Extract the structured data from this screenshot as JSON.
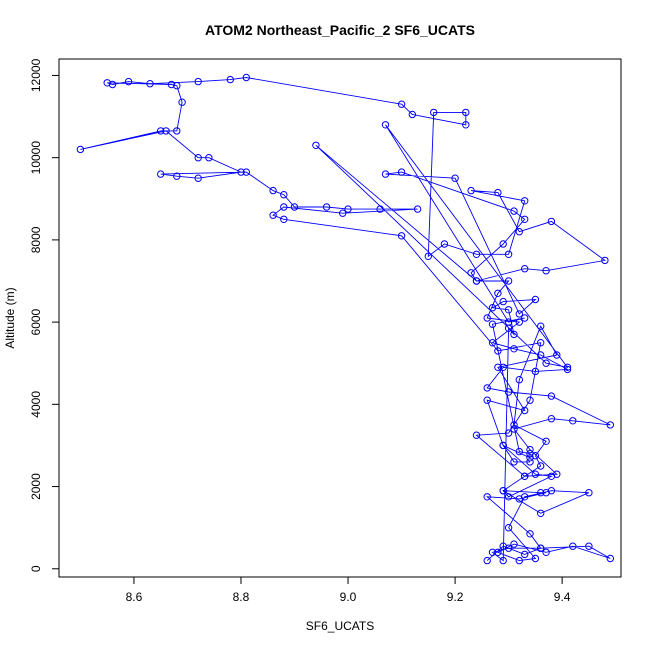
{
  "chart_data": {
    "type": "line",
    "title": "ATOM2 Northeast_Pacific_2 SF6_UCATS",
    "xlabel": "SF6_UCATS",
    "ylabel": "Altitude (m)",
    "xlim": [
      8.46,
      9.51
    ],
    "ylim": [
      -200,
      12400
    ],
    "x_ticks": [
      8.6,
      8.8,
      9.0,
      9.2,
      9.4
    ],
    "x_tick_labels": [
      "8.6",
      "8.8",
      "9.0",
      "9.2",
      "9.4"
    ],
    "y_ticks": [
      0,
      2000,
      4000,
      6000,
      8000,
      10000,
      12000
    ],
    "y_tick_labels": [
      "0",
      "2000",
      "4000",
      "6000",
      "8000",
      "10000",
      "12000"
    ],
    "grid": false,
    "marker": "open-circle",
    "series": [
      {
        "color": "#0000ff",
        "points": [
          [
            9.26,
            200
          ],
          [
            9.29,
            550
          ],
          [
            9.33,
            350
          ],
          [
            9.36,
            500
          ],
          [
            9.45,
            550
          ],
          [
            9.49,
            250
          ],
          [
            9.42,
            550
          ],
          [
            9.37,
            400
          ],
          [
            9.31,
            600
          ],
          [
            9.28,
            400
          ],
          [
            9.32,
            200
          ],
          [
            9.35,
            250
          ],
          [
            9.3,
            1000
          ],
          [
            9.33,
            1750
          ],
          [
            9.38,
            1900
          ],
          [
            9.45,
            1850
          ],
          [
            9.36,
            1350
          ],
          [
            9.29,
            1900
          ],
          [
            9.33,
            2250
          ],
          [
            9.39,
            2300
          ],
          [
            9.34,
            2900
          ],
          [
            9.31,
            3400
          ],
          [
            9.38,
            3650
          ],
          [
            9.42,
            3600
          ],
          [
            9.49,
            3500
          ],
          [
            9.38,
            4200
          ],
          [
            9.3,
            4300
          ],
          [
            9.26,
            4400
          ],
          [
            9.29,
            4900
          ],
          [
            9.35,
            4800
          ],
          [
            9.41,
            4850
          ],
          [
            9.36,
            5200
          ],
          [
            9.31,
            5350
          ],
          [
            9.27,
            5500
          ],
          [
            9.32,
            6000
          ],
          [
            9.26,
            6100
          ],
          [
            9.28,
            6700
          ],
          [
            9.3,
            7000
          ],
          [
            9.24,
            7000
          ],
          [
            9.33,
            7300
          ],
          [
            9.37,
            7250
          ],
          [
            9.48,
            7500
          ],
          [
            9.38,
            8450
          ],
          [
            9.32,
            8200
          ],
          [
            9.28,
            9150
          ],
          [
            9.23,
            9200
          ],
          [
            9.33,
            8950
          ],
          [
            9.3,
            7650
          ],
          [
            9.24,
            7650
          ],
          [
            9.18,
            7900
          ],
          [
            9.15,
            7600
          ],
          [
            9.16,
            11100
          ],
          [
            9.22,
            11100
          ],
          [
            9.22,
            10800
          ],
          [
            9.12,
            11050
          ],
          [
            9.1,
            11300
          ],
          [
            8.81,
            11950
          ],
          [
            8.78,
            11900
          ],
          [
            8.72,
            11850
          ],
          [
            8.63,
            11800
          ],
          [
            8.59,
            11850
          ],
          [
            8.56,
            11780
          ],
          [
            8.55,
            11820
          ],
          [
            8.67,
            11780
          ],
          [
            8.68,
            11750
          ],
          [
            8.69,
            11350
          ],
          [
            8.68,
            10650
          ],
          [
            8.65,
            10650
          ],
          [
            8.5,
            10200
          ],
          [
            8.66,
            10650
          ],
          [
            8.72,
            10000
          ],
          [
            8.74,
            10000
          ],
          [
            8.8,
            9650
          ],
          [
            8.72,
            9500
          ],
          [
            8.68,
            9550
          ],
          [
            8.65,
            9600
          ],
          [
            8.81,
            9650
          ],
          [
            8.86,
            9200
          ],
          [
            8.88,
            9100
          ],
          [
            8.9,
            8800
          ],
          [
            8.96,
            8800
          ],
          [
            9.0,
            8750
          ],
          [
            9.06,
            8750
          ],
          [
            9.13,
            8750
          ],
          [
            8.99,
            8650
          ],
          [
            8.88,
            8800
          ],
          [
            8.86,
            8600
          ],
          [
            8.88,
            8500
          ],
          [
            9.1,
            8100
          ],
          [
            9.28,
            5300
          ],
          [
            9.36,
            5500
          ],
          [
            9.34,
            4100
          ],
          [
            9.3,
            3300
          ],
          [
            9.24,
            3250
          ],
          [
            9.33,
            2250
          ],
          [
            9.36,
            2500
          ],
          [
            9.35,
            2750
          ],
          [
            9.37,
            3100
          ],
          [
            9.31,
            3500
          ],
          [
            9.32,
            4600
          ],
          [
            9.36,
            5900
          ],
          [
            9.39,
            5200
          ],
          [
            9.28,
            4900
          ],
          [
            9.33,
            3850
          ],
          [
            9.26,
            4100
          ],
          [
            9.29,
            3000
          ],
          [
            9.35,
            2300
          ],
          [
            9.38,
            2250
          ],
          [
            9.3,
            1750
          ],
          [
            9.29,
            1900
          ],
          [
            9.36,
            1850
          ],
          [
            9.37,
            1850
          ],
          [
            9.32,
            1700
          ],
          [
            9.26,
            1750
          ],
          [
            9.34,
            850
          ],
          [
            9.36,
            500
          ],
          [
            9.3,
            500
          ],
          [
            9.27,
            400
          ],
          [
            9.29,
            200
          ],
          [
            9.3,
            5850
          ],
          [
            9.31,
            5700
          ],
          [
            9.3,
            6300
          ],
          [
            9.27,
            6350
          ],
          [
            9.29,
            6500
          ],
          [
            9.35,
            6550
          ],
          [
            9.32,
            6200
          ],
          [
            9.2,
            9500
          ],
          [
            9.07,
            9600
          ],
          [
            9.1,
            9650
          ],
          [
            9.31,
            8700
          ],
          [
            9.33,
            8500
          ],
          [
            9.29,
            7900
          ],
          [
            9.23,
            7200
          ],
          [
            9.24,
            7000
          ],
          [
            8.94,
            10300
          ],
          [
            9.37,
            5000
          ],
          [
            9.41,
            4900
          ],
          [
            9.07,
            10800
          ],
          [
            9.3,
            6000
          ],
          [
            9.33,
            6100
          ],
          [
            9.27,
            5950
          ],
          [
            9.32,
            2850
          ],
          [
            9.34,
            2800
          ],
          [
            9.34,
            2700
          ],
          [
            9.29,
            3000
          ],
          [
            9.31,
            2600
          ],
          [
            9.34,
            2600
          ]
        ]
      }
    ]
  }
}
